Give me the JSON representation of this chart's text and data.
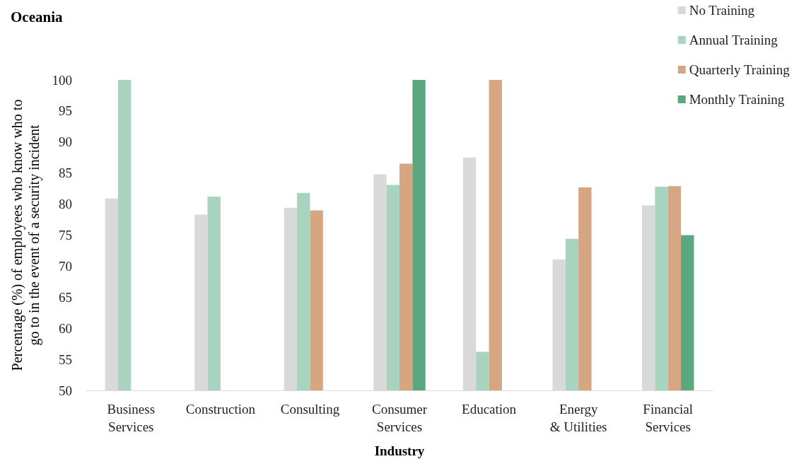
{
  "chart_data": {
    "type": "bar",
    "title": "Oceania",
    "xlabel": "Industry",
    "ylabel": "Percentage (%) of employees who know who to go to in the event of a security incident",
    "categories": [
      "Business Services",
      "Construction",
      "Consulting",
      "Consumer Services",
      "Education",
      "Energy & Utilities",
      "Financial Services"
    ],
    "series": [
      {
        "name": "No Training",
        "color": "#d9d9d9",
        "values": [
          80.9,
          78.3,
          79.4,
          84.8,
          87.5,
          71.1,
          79.8
        ]
      },
      {
        "name": "Annual Training",
        "color": "#a8d3bf",
        "values": [
          100,
          81.2,
          81.8,
          83.1,
          56.2,
          74.4,
          82.8
        ]
      },
      {
        "name": "Quarterly Training",
        "color": "#d6a683",
        "values": [
          null,
          null,
          79.0,
          86.5,
          100,
          82.7,
          82.9
        ]
      },
      {
        "name": "Monthly Training",
        "color": "#5aa780",
        "values": [
          null,
          null,
          null,
          100,
          null,
          null,
          75.0
        ]
      }
    ],
    "ylim": [
      50,
      100
    ],
    "yticks": [
      50,
      55,
      60,
      65,
      70,
      75,
      80,
      85,
      90,
      95,
      100
    ],
    "grid": false,
    "legend": "top right"
  }
}
